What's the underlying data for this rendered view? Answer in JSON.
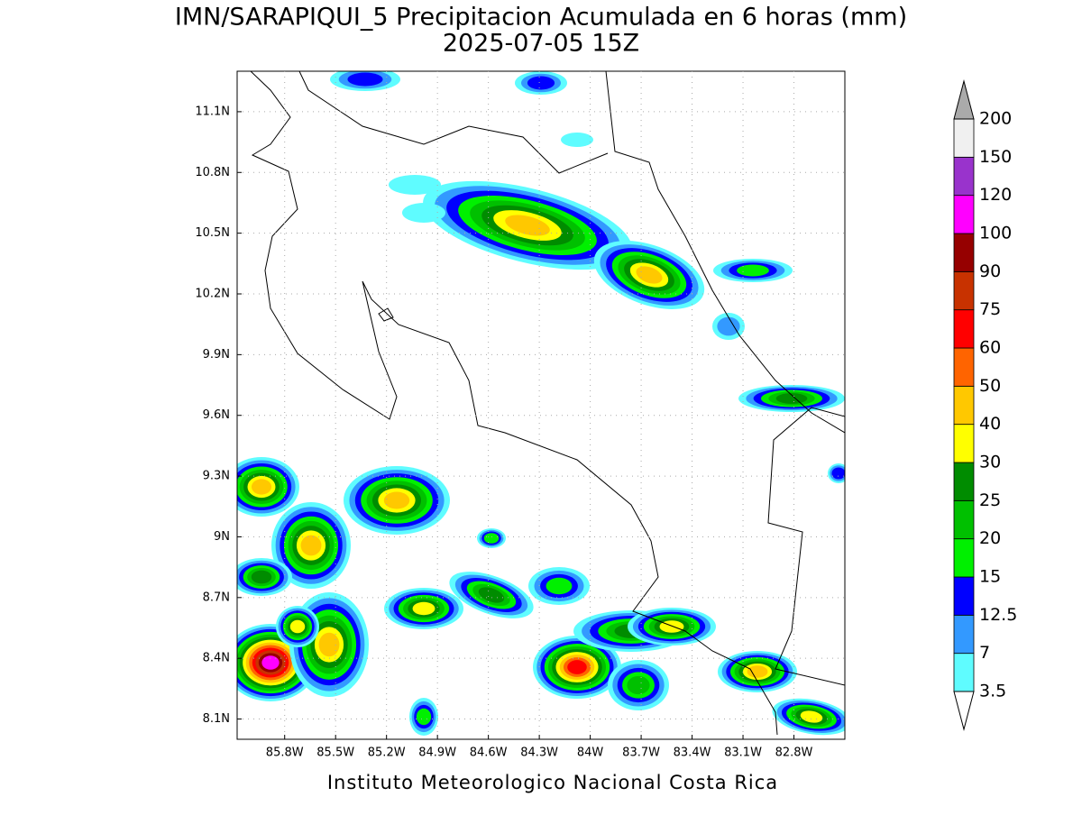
{
  "title": "IMN/SARAPIQUI_5 Precipitacion Acumulada en 6 horas (mm)",
  "subtitle": "2025-07-05 15Z",
  "footer": "Instituto Meteorologico Nacional Costa Rica",
  "map": {
    "xlim": [
      -86.08,
      -82.5
    ],
    "ylim": [
      8.0,
      11.3
    ],
    "grid": true,
    "xticks": [
      {
        "value": -85.8,
        "label": "85.8W"
      },
      {
        "value": -85.5,
        "label": "85.5W"
      },
      {
        "value": -85.2,
        "label": "85.2W"
      },
      {
        "value": -84.9,
        "label": "84.9W"
      },
      {
        "value": -84.6,
        "label": "84.6W"
      },
      {
        "value": -84.3,
        "label": "84.3W"
      },
      {
        "value": -84,
        "label": "84W"
      },
      {
        "value": -83.7,
        "label": "83.7W"
      },
      {
        "value": -83.4,
        "label": "83.4W"
      },
      {
        "value": -83.1,
        "label": "83.1W"
      },
      {
        "value": -82.8,
        "label": "82.8W"
      }
    ],
    "yticks": [
      {
        "value": 8.1,
        "label": "8.1N"
      },
      {
        "value": 8.4,
        "label": "8.4N"
      },
      {
        "value": 8.7,
        "label": "8.7N"
      },
      {
        "value": 9,
        "label": "9N"
      },
      {
        "value": 9.3,
        "label": "9.3N"
      },
      {
        "value": 9.6,
        "label": "9.6N"
      },
      {
        "value": 9.9,
        "label": "9.9N"
      },
      {
        "value": 10.2,
        "label": "10.2N"
      },
      {
        "value": 10.5,
        "label": "10.5N"
      },
      {
        "value": 10.8,
        "label": "10.8N"
      },
      {
        "value": 11.1,
        "label": "11.1N"
      }
    ]
  },
  "colorbar": {
    "levels": [
      3.5,
      7,
      12.5,
      15,
      20,
      25,
      30,
      40,
      50,
      60,
      75,
      90,
      100,
      120,
      150,
      200
    ],
    "colors": [
      "#5ffcff",
      "#3399ff",
      "#0000ff",
      "#00f000",
      "#00c000",
      "#008c00",
      "#ffff00",
      "#ffc800",
      "#ff6400",
      "#ff0000",
      "#c83200",
      "#960000",
      "#ff00ff",
      "#9933cc",
      "#f0f0f0"
    ],
    "under_color": "#ffffff",
    "over_color": "#aaaaaa"
  }
}
